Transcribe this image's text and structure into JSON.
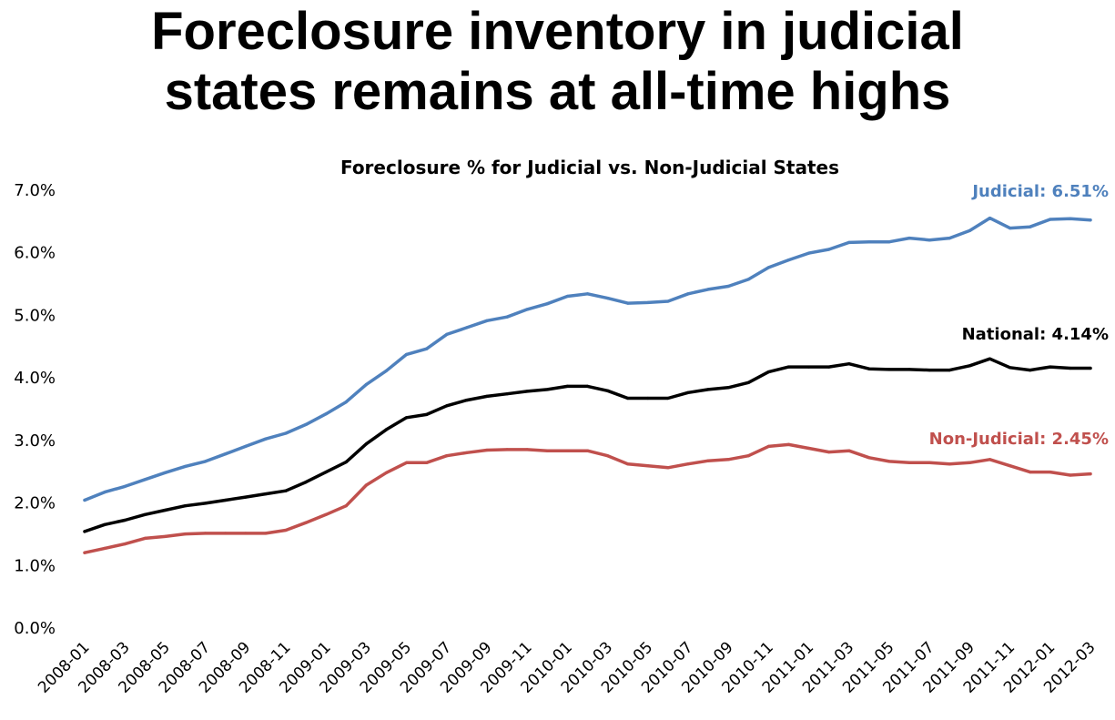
{
  "slide": {
    "title_line1": "Foreclosure inventory in judicial",
    "title_line2": "states remains at all-time highs"
  },
  "chart_data": {
    "type": "line",
    "title": "Foreclosure % for Judicial vs. Non-Judicial States",
    "xlabel": "",
    "ylabel": "",
    "ylim": [
      0,
      7
    ],
    "y_ticks": [
      "0.0%",
      "1.0%",
      "2.0%",
      "3.0%",
      "4.0%",
      "5.0%",
      "6.0%",
      "7.0%"
    ],
    "grid": false,
    "legend": "none",
    "x": [
      "2008-01",
      "2008-02",
      "2008-03",
      "2008-04",
      "2008-05",
      "2008-06",
      "2008-07",
      "2008-08",
      "2008-09",
      "2008-10",
      "2008-11",
      "2008-12",
      "2009-01",
      "2009-02",
      "2009-03",
      "2009-04",
      "2009-05",
      "2009-06",
      "2009-07",
      "2009-08",
      "2009-09",
      "2009-10",
      "2009-11",
      "2009-12",
      "2010-01",
      "2010-02",
      "2010-03",
      "2010-04",
      "2010-05",
      "2010-06",
      "2010-07",
      "2010-08",
      "2010-09",
      "2010-10",
      "2010-11",
      "2010-12",
      "2011-01",
      "2011-02",
      "2011-03",
      "2011-04",
      "2011-05",
      "2011-06",
      "2011-07",
      "2011-08",
      "2011-09",
      "2011-10",
      "2011-11",
      "2011-12",
      "2012-01",
      "2012-02",
      "2012-03"
    ],
    "x_tick_labels": [
      "2008-01",
      "2008-03",
      "2008-05",
      "2008-07",
      "2008-09",
      "2008-11",
      "2009-01",
      "2009-03",
      "2009-05",
      "2009-07",
      "2009-09",
      "2009-11",
      "2010-01",
      "2010-03",
      "2010-05",
      "2010-07",
      "2010-09",
      "2010-11",
      "2011-01",
      "2011-03",
      "2011-05",
      "2011-07",
      "2011-09",
      "2011-11",
      "2012-01",
      "2012-03"
    ],
    "series": [
      {
        "key": "judicial",
        "color": "#4f81bd",
        "end_label": "Judicial: 6.51%",
        "values": [
          2.03,
          2.16,
          2.25,
          2.36,
          2.47,
          2.57,
          2.65,
          2.77,
          2.89,
          3.01,
          3.1,
          3.24,
          3.41,
          3.6,
          3.88,
          4.1,
          4.36,
          4.45,
          4.68,
          4.79,
          4.9,
          4.96,
          5.08,
          5.17,
          5.29,
          5.33,
          5.26,
          5.18,
          5.19,
          5.21,
          5.33,
          5.4,
          5.45,
          5.56,
          5.75,
          5.87,
          5.98,
          6.04,
          6.15,
          6.16,
          6.16,
          6.22,
          6.19,
          6.22,
          6.34,
          6.54,
          6.38,
          6.4,
          6.52,
          6.53,
          6.51
        ]
      },
      {
        "key": "national",
        "color": "#000000",
        "end_label": "National: 4.14%",
        "values": [
          1.53,
          1.64,
          1.71,
          1.8,
          1.87,
          1.94,
          1.98,
          2.03,
          2.08,
          2.13,
          2.18,
          2.32,
          2.48,
          2.64,
          2.93,
          3.16,
          3.35,
          3.4,
          3.54,
          3.63,
          3.69,
          3.73,
          3.77,
          3.8,
          3.85,
          3.85,
          3.78,
          3.66,
          3.66,
          3.66,
          3.75,
          3.8,
          3.83,
          3.91,
          4.08,
          4.16,
          4.16,
          4.16,
          4.21,
          4.13,
          4.12,
          4.12,
          4.11,
          4.11,
          4.18,
          4.29,
          4.15,
          4.11,
          4.16,
          4.14,
          4.14
        ]
      },
      {
        "key": "non_judicial",
        "color": "#c0504d",
        "end_label": "Non-Judicial: 2.45%",
        "values": [
          1.19,
          1.26,
          1.33,
          1.42,
          1.45,
          1.49,
          1.5,
          1.5,
          1.5,
          1.5,
          1.55,
          1.67,
          1.8,
          1.94,
          2.27,
          2.47,
          2.63,
          2.63,
          2.74,
          2.79,
          2.83,
          2.84,
          2.84,
          2.82,
          2.82,
          2.82,
          2.74,
          2.61,
          2.58,
          2.55,
          2.61,
          2.66,
          2.68,
          2.74,
          2.89,
          2.92,
          2.86,
          2.8,
          2.82,
          2.71,
          2.65,
          2.63,
          2.63,
          2.61,
          2.63,
          2.68,
          2.58,
          2.48,
          2.48,
          2.43,
          2.45
        ]
      }
    ]
  }
}
